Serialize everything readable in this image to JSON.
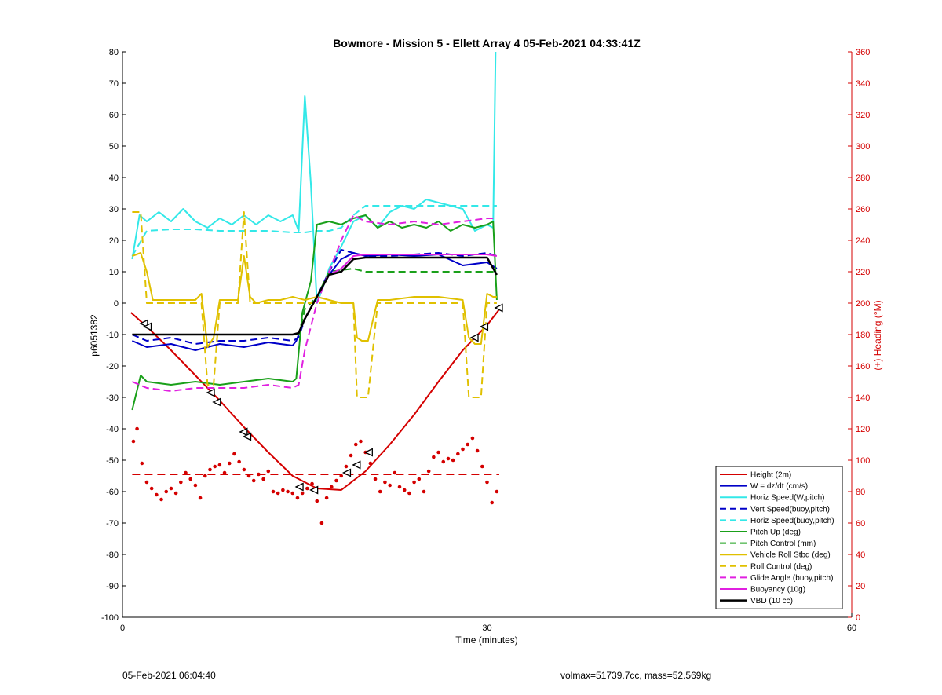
{
  "footer": {
    "timestamp": "05-Feb-2021 06:04:40",
    "vol_mass": "volmax=51739.7cc, mass=52.569kg"
  },
  "chart_data": {
    "type": "line",
    "title": "Bowmore - Mission 5 - Ellett Array 4 05-Feb-2021 04:33:41Z",
    "xlabel": "Time (minutes)",
    "ylabel": "p6051382",
    "y2label": "(+) Heading (°M)",
    "xlim": [
      0,
      60
    ],
    "ylim": [
      -100,
      80
    ],
    "y2lim": [
      0,
      360
    ],
    "xticks": [
      0,
      30,
      60
    ],
    "yticks": [
      -100,
      -90,
      -80,
      -70,
      -60,
      -50,
      -40,
      -30,
      -20,
      -10,
      0,
      10,
      20,
      30,
      40,
      50,
      60,
      70,
      80
    ],
    "y2ticks": [
      0,
      20,
      40,
      60,
      80,
      100,
      120,
      140,
      160,
      180,
      200,
      220,
      240,
      260,
      280,
      300,
      320,
      340,
      360
    ],
    "grid": "x at 30",
    "legend_position": "bottom-right",
    "colors": {
      "red": "#d40000",
      "blue": "#0000c8",
      "cyan": "#33e8e8",
      "green": "#1aa01a",
      "yellow": "#e0c000",
      "magenta": "#e020e0",
      "black": "#000000",
      "axis2": "#d40000"
    },
    "series": [
      {
        "name": "Height (2m)",
        "color": "red",
        "dash": false,
        "width": 2,
        "x": [
          0.7,
          2,
          4,
          6,
          8,
          10,
          12,
          14,
          16,
          18,
          20,
          22,
          24,
          26,
          28,
          30,
          31
        ],
        "y": [
          -3,
          -7.5,
          -15,
          -23,
          -31,
          -39.5,
          -47.5,
          -55,
          -59,
          -59.5,
          -53.5,
          -45,
          -35.5,
          -25,
          -15,
          -7,
          -2
        ]
      },
      {
        "name": "W = dz/dt (cm/s)",
        "color": "blue",
        "dash": false,
        "width": 2,
        "x": [
          0.8,
          2,
          4,
          6,
          8,
          10,
          12,
          14,
          14.3,
          15,
          16,
          17,
          18,
          19,
          20,
          22,
          24,
          26,
          28,
          30,
          30.8
        ],
        "y": [
          -12,
          -14,
          -13,
          -15,
          -13,
          -14,
          -12.5,
          -13.5,
          -12,
          -5,
          2,
          9,
          14,
          16,
          15,
          15.5,
          15,
          15.5,
          12,
          13,
          11
        ]
      },
      {
        "name": "Horiz Speed(W,pitch)",
        "color": "cyan",
        "dash": false,
        "width": 2,
        "x": [
          0.8,
          1.4,
          2,
          3,
          4,
          5,
          6,
          7,
          8,
          9,
          10,
          11,
          12,
          13,
          14,
          14.5,
          15,
          15.5,
          16,
          16.5,
          17,
          18,
          19,
          20,
          21,
          22,
          23,
          24,
          25,
          26,
          27,
          28,
          29,
          30,
          30.5,
          30.7
        ],
        "y": [
          14,
          28,
          26,
          29,
          26,
          30,
          26,
          24,
          27,
          25,
          28,
          25,
          28,
          26,
          28,
          23,
          66,
          38,
          0,
          5,
          11,
          18,
          26,
          28,
          24,
          29,
          31,
          30,
          33,
          32,
          31,
          30,
          23,
          25,
          24,
          80
        ]
      },
      {
        "name": "Vert Speed(buoy,pitch)",
        "color": "blue",
        "dash": true,
        "width": 2,
        "x": [
          0.8,
          2,
          4,
          6,
          8,
          10,
          12,
          14,
          14.5,
          15,
          16,
          17,
          18,
          19,
          20,
          22,
          24,
          26,
          28,
          30,
          30.8
        ],
        "y": [
          -10,
          -12,
          -11,
          -13,
          -12,
          -12,
          -11,
          -12,
          -11,
          -5,
          2,
          10,
          17,
          16,
          15,
          15,
          15.5,
          16,
          15,
          16,
          15
        ]
      },
      {
        "name": "Horiz Speed(buoy,pitch)",
        "color": "cyan",
        "dash": true,
        "width": 2,
        "x": [
          0.8,
          2,
          4,
          6,
          8,
          10,
          12,
          14,
          15,
          16,
          17,
          18,
          19,
          20,
          22,
          24,
          26,
          28,
          30,
          30.8
        ],
        "y": [
          15,
          23,
          23.5,
          23.5,
          23,
          23,
          23,
          22.5,
          22.5,
          23,
          23,
          24,
          28,
          31,
          31,
          31,
          31,
          31,
          31,
          31
        ]
      },
      {
        "name": "Pitch Up (deg)",
        "color": "green",
        "dash": false,
        "width": 2,
        "x": [
          0.8,
          1.5,
          2,
          4,
          6,
          8,
          10,
          12,
          14,
          14.3,
          14.8,
          15.5,
          16,
          17,
          18,
          19,
          20,
          21,
          22,
          23,
          24,
          25,
          26,
          27,
          28,
          29,
          30,
          30.5,
          30.8
        ],
        "y": [
          -34,
          -23,
          -25,
          -26,
          -25,
          -26,
          -25,
          -24,
          -25,
          -24,
          -3,
          7,
          25,
          26,
          25,
          27,
          28,
          24,
          26,
          24,
          25,
          24,
          26,
          23,
          25,
          24,
          25,
          26,
          1
        ]
      },
      {
        "name": "Pitch Control (mm)",
        "color": "green",
        "dash": true,
        "width": 2,
        "x": [
          0.8,
          14,
          14.5,
          15,
          16,
          17,
          18,
          19,
          20,
          22,
          24,
          26,
          28,
          30,
          30.8
        ],
        "y": [
          -10,
          -10,
          -10,
          -2,
          2,
          10,
          10.5,
          11,
          10,
          10,
          10,
          10,
          10,
          10,
          10
        ]
      },
      {
        "name": "Vehicle Roll Stbd (deg)",
        "color": "yellow",
        "dash": false,
        "width": 2,
        "x": [
          0.8,
          1.5,
          2,
          2.5,
          4,
          6,
          6.5,
          7,
          7.5,
          8,
          9,
          9.5,
          10,
          10.5,
          11,
          12,
          13,
          14,
          15,
          16,
          17,
          18,
          19,
          19.3,
          19.7,
          20.2,
          21,
          22,
          24,
          26,
          28,
          28.5,
          29,
          29.5,
          30,
          30.5,
          30.8
        ],
        "y": [
          15,
          16,
          10,
          1,
          1,
          1,
          3,
          -14,
          -11,
          1,
          1,
          1,
          15,
          2,
          0,
          1,
          1,
          2,
          1,
          2,
          1,
          0,
          0,
          -11,
          -12,
          -12,
          1,
          1,
          2,
          2,
          1,
          -11,
          -13,
          -13,
          3,
          2,
          2
        ]
      },
      {
        "name": "Roll Control (deg)",
        "color": "yellow",
        "dash": true,
        "width": 2,
        "x": [
          0.8,
          1.5,
          2,
          2.5,
          4,
          6,
          6.5,
          7,
          7.5,
          8,
          9,
          9.5,
          10,
          10.5,
          11,
          12,
          14,
          16,
          18,
          19,
          19.3,
          19.7,
          20.2,
          21,
          24,
          28,
          28.5,
          29,
          29.5,
          30,
          30.8
        ],
        "y": [
          29,
          29,
          0,
          0,
          0,
          0,
          0,
          -26,
          -26,
          0,
          0,
          0,
          29,
          0,
          0,
          0,
          0,
          0,
          0,
          0,
          -30,
          -30,
          -30,
          0,
          0,
          0,
          -30,
          -30,
          -30,
          0,
          0
        ]
      },
      {
        "name": "Glide Angle (buoy,pitch)",
        "color": "magenta",
        "dash": true,
        "width": 2,
        "x": [
          0.8,
          2,
          4,
          6,
          8,
          10,
          12,
          14,
          14.5,
          15,
          16,
          17,
          18,
          19,
          20,
          22,
          24,
          26,
          28,
          30,
          30.8
        ],
        "y": [
          -25,
          -27,
          -28,
          -27,
          -27,
          -27,
          -26,
          -27,
          -26,
          -15,
          0,
          10,
          20,
          28,
          26,
          25,
          26,
          25,
          26,
          27,
          27
        ]
      },
      {
        "name": "Buoyancy (10g)",
        "color": "magenta",
        "dash": false,
        "width": 2,
        "x": [
          0.8,
          14,
          14.5,
          15,
          16,
          17,
          18,
          19,
          20,
          22,
          24,
          26,
          28,
          30,
          30.8
        ],
        "y": [
          -10,
          -10,
          -9.5,
          -5,
          2,
          9,
          11,
          15,
          15.5,
          15.5,
          15.5,
          15.5,
          15.5,
          15.5,
          15
        ]
      },
      {
        "name": "VBD (10 cc)",
        "color": "black",
        "dash": false,
        "width": 2.5,
        "x": [
          0.8,
          14,
          14.5,
          15,
          16,
          17,
          18,
          19,
          20,
          22,
          24,
          26,
          28,
          30,
          30.8
        ],
        "y": [
          -10,
          -10,
          -9.5,
          -5,
          2,
          9,
          10,
          14,
          14.5,
          14.5,
          14.5,
          14.5,
          14.5,
          14.5,
          9
        ]
      }
    ],
    "heading": {
      "axis": "right",
      "color": "red",
      "target": {
        "x": [
          0.8,
          31
        ],
        "y": [
          91,
          91
        ]
      },
      "points": {
        "x": [
          0.9,
          1.2,
          1.6,
          2,
          2.4,
          2.8,
          3.2,
          3.6,
          4,
          4.4,
          4.8,
          5.2,
          5.6,
          6,
          6.4,
          6.8,
          7.2,
          7.6,
          8,
          8.4,
          8.8,
          9.2,
          9.6,
          10,
          10.4,
          10.8,
          11.2,
          11.6,
          12,
          12.4,
          12.8,
          13.2,
          13.6,
          14,
          14.4,
          14.8,
          15.2,
          15.6,
          16,
          16.4,
          16.8,
          17.2,
          17.6,
          18,
          18.4,
          18.8,
          19.2,
          19.6,
          20,
          20.4,
          20.8,
          21.2,
          21.6,
          22,
          22.4,
          22.8,
          23.2,
          23.6,
          24,
          24.4,
          24.8,
          25.2,
          25.6,
          26,
          26.4,
          26.8,
          27.2,
          27.6,
          28,
          28.4,
          28.8,
          29.2,
          29.6,
          30,
          30.4,
          30.8
        ],
        "y": [
          112,
          120,
          98,
          86,
          82,
          78,
          75,
          80,
          82,
          79,
          86,
          92,
          88,
          84,
          76,
          90,
          94,
          96,
          97,
          92,
          98,
          104,
          99,
          94,
          90,
          87,
          91,
          88,
          93,
          80,
          79,
          81,
          80,
          79,
          76,
          79,
          82,
          85,
          74,
          60,
          76,
          83,
          87,
          90,
          96,
          103,
          110,
          112,
          105,
          98,
          88,
          80,
          86,
          84,
          92,
          83,
          81,
          79,
          86,
          88,
          80,
          93,
          102,
          105,
          99,
          101,
          100,
          104,
          107,
          110,
          114,
          106,
          96,
          86,
          73,
          80
        ]
      }
    },
    "markers": {
      "x": [
        1.8,
        2.1,
        7.3,
        7.8,
        10,
        10.3,
        14.6,
        15.8,
        18.5,
        19.3,
        20.3,
        29,
        29.8,
        31
      ],
      "y": [
        -6.5,
        -7.5,
        -28.5,
        -31.5,
        -41,
        -42.5,
        -58.5,
        -59.5,
        -54,
        -51.5,
        -47.5,
        -11,
        -7.5,
        -1.5
      ]
    }
  }
}
